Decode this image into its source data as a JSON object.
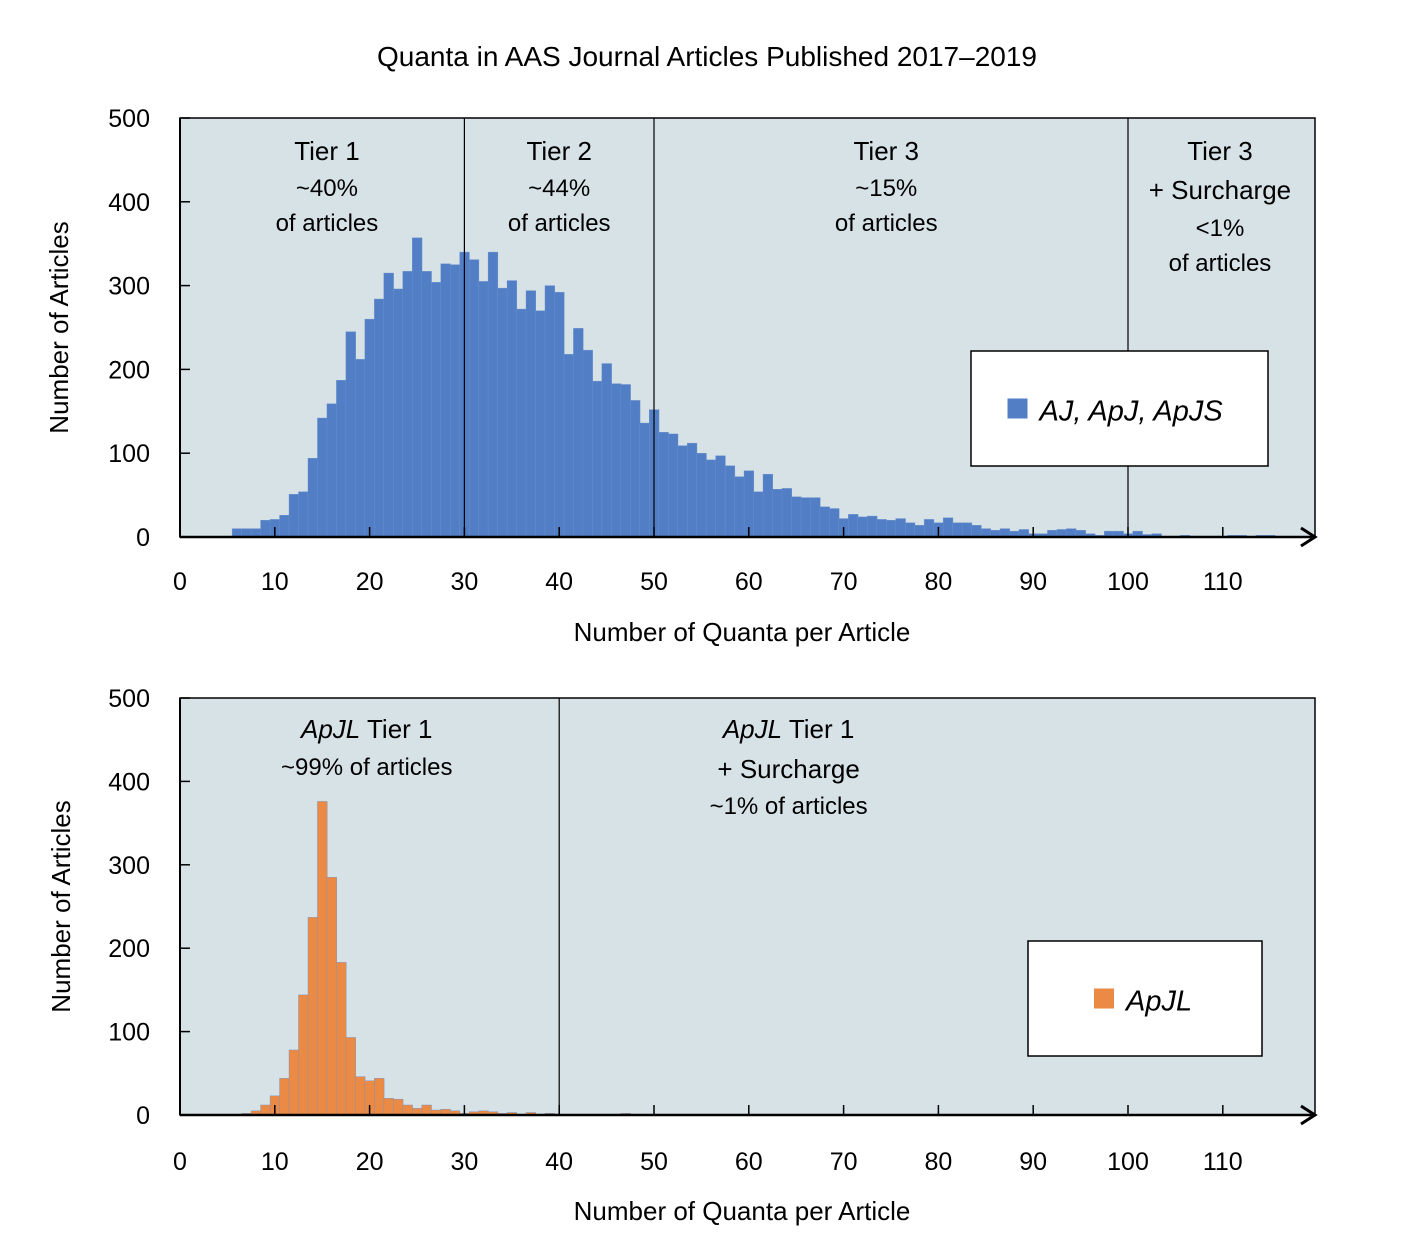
{
  "title": "Quanta in AAS Journal Articles Published 2017–2019",
  "chart_data": [
    {
      "type": "bar",
      "subtype": "histogram",
      "xlabel": "Number of Quanta per Article",
      "ylabel": "Number of Articles",
      "xlim": [
        0,
        120
      ],
      "ylim": [
        0,
        500
      ],
      "xticks": [
        "0",
        "10",
        "20",
        "30",
        "40",
        "50",
        "60",
        "70",
        "80",
        "90",
        "100",
        "110"
      ],
      "yticks": [
        "0",
        "100",
        "200",
        "300",
        "400",
        "500"
      ],
      "grid": false,
      "background": "#d7e2e7",
      "legend": {
        "placement": "right",
        "entries": [
          {
            "name": "AJ, ApJ, ApJS",
            "color": "#517ec5"
          }
        ]
      },
      "dividers": [
        30,
        50,
        100
      ],
      "annotations": [
        {
          "x": 15.5,
          "lines": [
            {
              "text": "Tier 1",
              "style": "head"
            },
            {
              "text": "~40%",
              "style": "sub"
            },
            {
              "text": "of articles",
              "style": "sub"
            }
          ]
        },
        {
          "x": 40,
          "lines": [
            {
              "text": "Tier 2",
              "style": "head"
            },
            {
              "text": "~44%",
              "style": "sub"
            },
            {
              "text": "of articles",
              "style": "sub"
            }
          ]
        },
        {
          "x": 74.5,
          "lines": [
            {
              "text": "Tier 3",
              "style": "head"
            },
            {
              "text": "~15%",
              "style": "sub"
            },
            {
              "text": "of articles",
              "style": "sub"
            }
          ]
        },
        {
          "x": 109.7,
          "lines": [
            {
              "text": "Tier 3",
              "style": "head"
            },
            {
              "text": "+ Surcharge",
              "style": "head"
            },
            {
              "text": "<1%",
              "style": "sub"
            },
            {
              "text": "of articles",
              "style": "sub"
            }
          ]
        }
      ],
      "annotation_color": "#1f2f57",
      "series": [
        {
          "name": "AJ, ApJ, ApJS",
          "color": "#517ec5",
          "x": [
            6,
            7,
            8,
            9,
            10,
            11,
            12,
            13,
            14,
            15,
            16,
            17,
            18,
            19,
            20,
            21,
            22,
            23,
            24,
            25,
            26,
            27,
            28,
            29,
            30,
            31,
            32,
            33,
            34,
            35,
            36,
            37,
            38,
            39,
            40,
            41,
            42,
            43,
            44,
            45,
            46,
            47,
            48,
            49,
            50,
            51,
            52,
            53,
            54,
            55,
            56,
            57,
            58,
            59,
            60,
            61,
            62,
            63,
            64,
            65,
            66,
            67,
            68,
            69,
            70,
            71,
            72,
            73,
            74,
            75,
            76,
            77,
            78,
            79,
            80,
            81,
            82,
            83,
            84,
            85,
            86,
            87,
            88,
            89,
            90,
            91,
            92,
            93,
            94,
            95,
            96,
            97,
            98,
            99,
            100,
            101,
            102,
            103,
            104,
            105,
            106,
            107,
            108,
            109,
            110,
            111,
            112,
            113,
            114,
            115,
            116,
            117,
            118
          ],
          "values": [
            10,
            10,
            10,
            20,
            21,
            26,
            51,
            54,
            94,
            142,
            159,
            187,
            245,
            212,
            260,
            284,
            315,
            296,
            317,
            357,
            317,
            304,
            326,
            325,
            340,
            331,
            305,
            340,
            297,
            306,
            272,
            294,
            270,
            300,
            292,
            218,
            249,
            223,
            186,
            207,
            183,
            182,
            163,
            136,
            152,
            125,
            123,
            109,
            112,
            100,
            92,
            97,
            85,
            72,
            79,
            54,
            75,
            57,
            58,
            48,
            47,
            47,
            36,
            34,
            22,
            27,
            24,
            25,
            21,
            20,
            22,
            17,
            14,
            21,
            17,
            23,
            17,
            17,
            14,
            10,
            8,
            10,
            7,
            9,
            4,
            4,
            8,
            9,
            10,
            8,
            4,
            2,
            7,
            7,
            4,
            7,
            3,
            4,
            1,
            1,
            2,
            1,
            1,
            1,
            1,
            2,
            2,
            1,
            2,
            2,
            1,
            1,
            1
          ]
        }
      ]
    },
    {
      "type": "bar",
      "subtype": "histogram",
      "xlabel": "Number of Quanta per Article",
      "ylabel": "Number of Articles",
      "xlim": [
        0,
        120
      ],
      "ylim": [
        0,
        500
      ],
      "xticks": [
        "0",
        "10",
        "20",
        "30",
        "40",
        "50",
        "60",
        "70",
        "80",
        "90",
        "100",
        "110"
      ],
      "yticks": [
        "0",
        "100",
        "200",
        "300",
        "400",
        "500"
      ],
      "grid": false,
      "background": "#d7e2e7",
      "legend": {
        "placement": "right",
        "entries": [
          {
            "name": "ApJL",
            "color": "#ea8a44"
          }
        ]
      },
      "dividers": [
        40
      ],
      "annotations": [
        {
          "x": 19.7,
          "lines": [
            {
              "italic": "ApJL",
              "text": " Tier 1",
              "style": "head"
            },
            {
              "text": "~99% of articles",
              "style": "sub"
            }
          ]
        },
        {
          "x": 64.2,
          "lines": [
            {
              "italic": "ApJL",
              "text": " Tier 1",
              "style": "head"
            },
            {
              "text": "+ Surcharge",
              "style": "head"
            },
            {
              "text": "~1% of articles",
              "style": "sub"
            }
          ]
        }
      ],
      "annotation_color": "#7b3512",
      "series": [
        {
          "name": "ApJL",
          "color": "#ea8a44",
          "x": [
            5,
            6,
            7,
            8,
            9,
            10,
            11,
            12,
            13,
            14,
            15,
            16,
            17,
            18,
            19,
            20,
            21,
            22,
            23,
            24,
            25,
            26,
            27,
            28,
            29,
            30,
            31,
            32,
            33,
            34,
            35,
            36,
            37,
            38,
            39,
            47,
            52,
            60,
            70,
            80,
            90
          ],
          "values": [
            1,
            1,
            2,
            5,
            12,
            23,
            44,
            78,
            144,
            237,
            376,
            285,
            183,
            93,
            46,
            41,
            44,
            20,
            19,
            12,
            8,
            12,
            6,
            7,
            5,
            2,
            4,
            5,
            4,
            2,
            3,
            1,
            3,
            1,
            2,
            2,
            1,
            1,
            1,
            1,
            1
          ]
        }
      ]
    }
  ]
}
